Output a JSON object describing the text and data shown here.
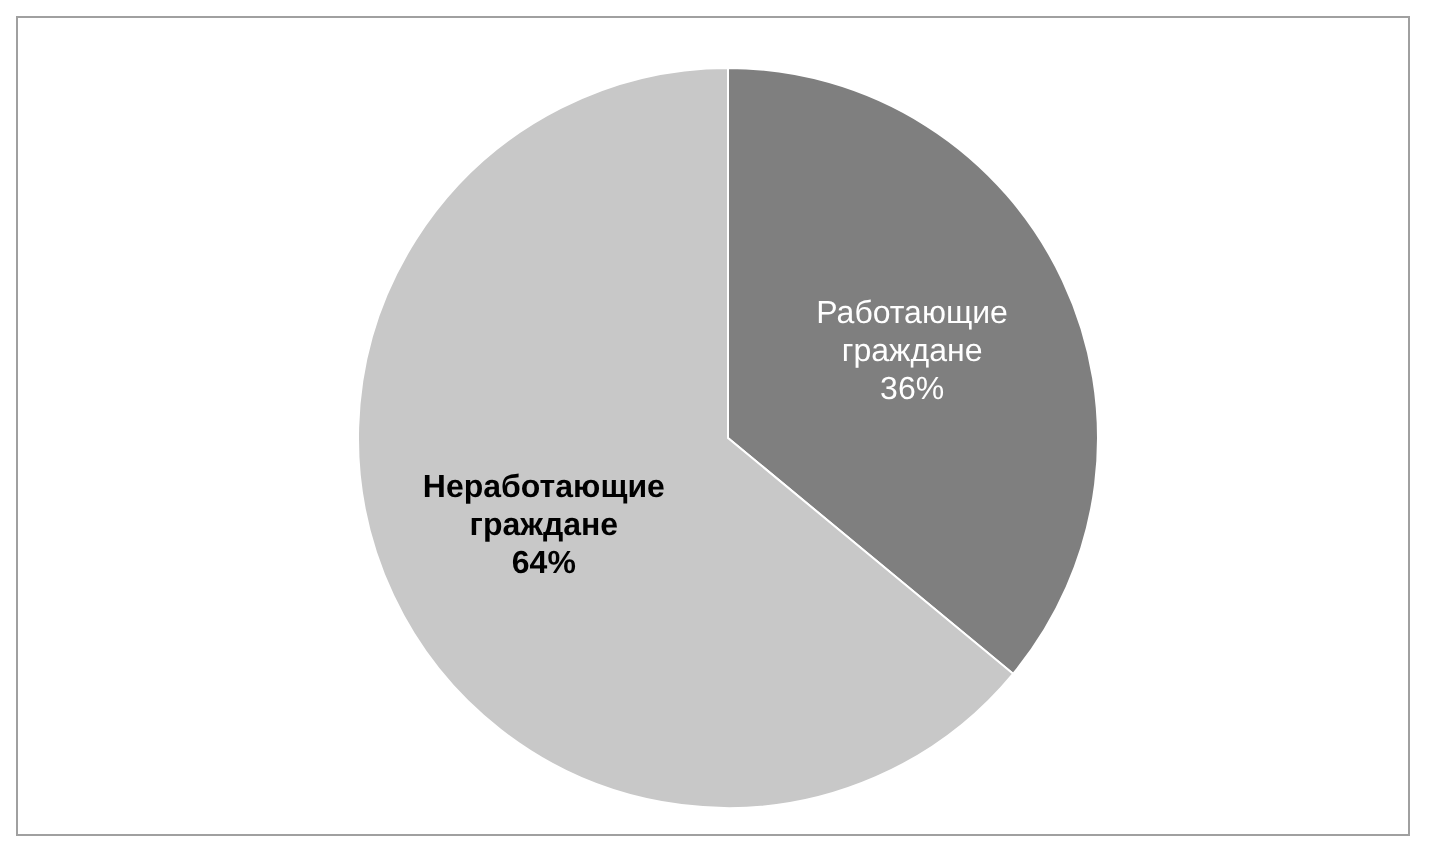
{
  "chart_data": {
    "type": "pie",
    "categories": [
      "Работающие граждане",
      "Неработающие граждане"
    ],
    "values": [
      36,
      64
    ],
    "colors": [
      "#7f7f7f",
      "#c8c8c8"
    ],
    "value_labels": [
      "36%",
      "64%"
    ]
  }
}
